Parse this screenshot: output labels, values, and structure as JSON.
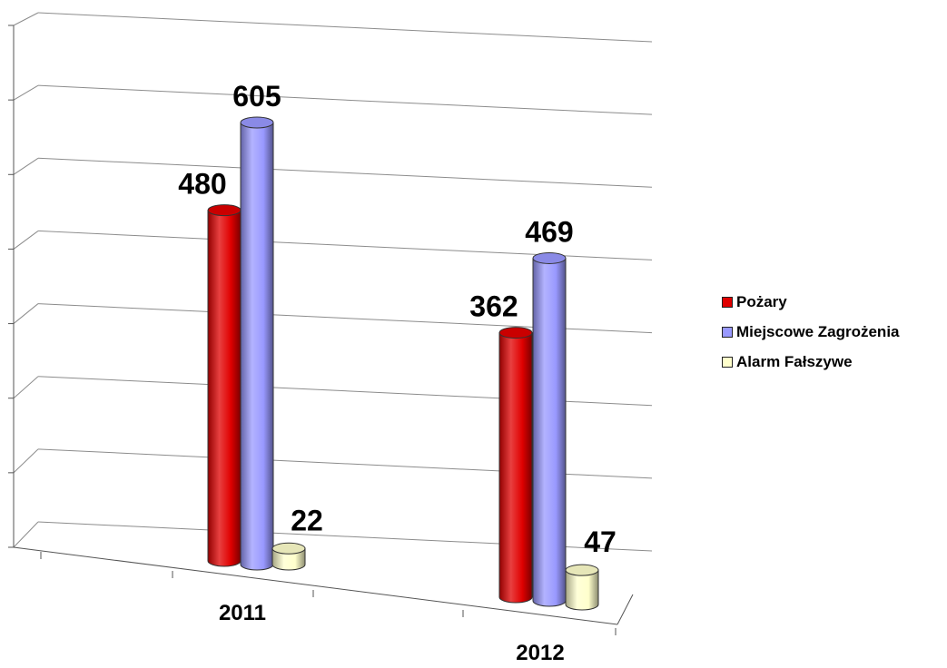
{
  "chart_data": {
    "type": "bar",
    "style": "3d-cylinder",
    "title": "",
    "xlabel": "",
    "ylabel": "",
    "categories": [
      "2011",
      "2012"
    ],
    "series": [
      {
        "name": "Pożary",
        "values": [
          480,
          362
        ],
        "color": "#e00000"
      },
      {
        "name": "Miejscowe Zagrożenia",
        "values": [
          605,
          469
        ],
        "color": "#9999ff"
      },
      {
        "name": "Alarm Fałszywe",
        "values": [
          22,
          47
        ],
        "color": "#ffffcc"
      }
    ],
    "ylim": [
      0,
      700
    ],
    "grid": true,
    "legend": "right",
    "data_labels": true
  }
}
